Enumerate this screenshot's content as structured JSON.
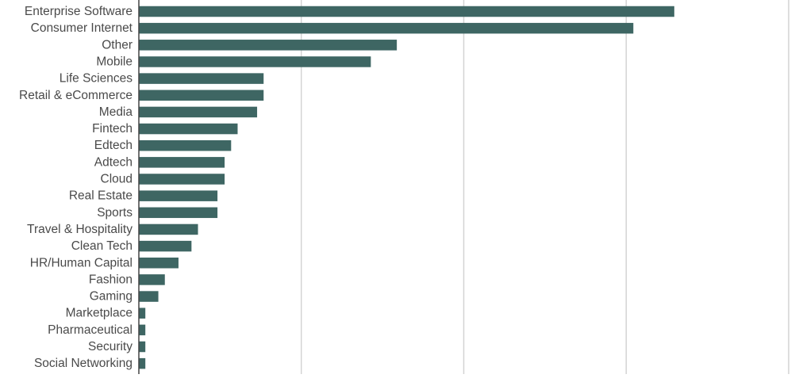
{
  "chart_data": {
    "type": "bar",
    "orientation": "horizontal",
    "title": "",
    "xlabel": "",
    "ylabel": "",
    "categories": [
      "Enterprise Software",
      "Consumer Internet",
      "Other",
      "Mobile",
      "Life Sciences",
      "Retail & eCommerce",
      "Media",
      "Fintech",
      "Edtech",
      "Adtech",
      "Cloud",
      "Real Estate",
      "Sports",
      "Travel & Hospitality",
      "Clean Tech",
      "HR/Human Capital",
      "Fashion",
      "Gaming",
      "Marketplace",
      "Pharmaceutical",
      "Security",
      "Social Networking"
    ],
    "values": [
      82.4,
      76.1,
      39.7,
      35.7,
      19.2,
      19.2,
      18.2,
      15.2,
      14.2,
      13.2,
      13.2,
      12.1,
      12.1,
      9.1,
      8.1,
      6.1,
      4.0,
      3.0,
      1.0,
      1.0,
      1.0,
      1.0
    ],
    "xlim": [
      0,
      100
    ],
    "gridlines": [
      25,
      50,
      75,
      100
    ],
    "grid": true,
    "legend": "none",
    "bar_color": "#3e6663"
  }
}
